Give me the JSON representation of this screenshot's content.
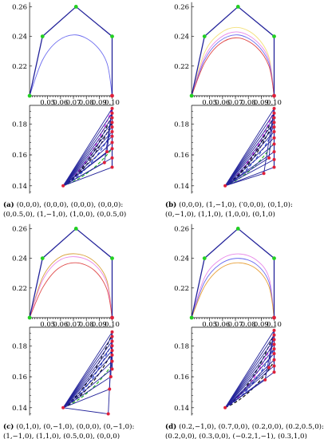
{
  "chart_data": [
    {
      "type": "line",
      "panel": "a",
      "caption": {
        "label": "(a)",
        "line1": "(0,0,0), (0,0,0), (0,0,0), (0,0,0):",
        "line2": "(0,0.5,0), (1,−1,0), (1,0,0), (0,0.5,0)"
      },
      "top": {
        "xlim": [
          0.036,
          0.1
        ],
        "ylim": [
          0.2,
          0.262
        ],
        "xticks": [
          "0.05",
          "0.06",
          "0.07",
          "0.08",
          "0.09",
          "0.10"
        ],
        "yticks": [
          "0.26",
          "0.24",
          "0.22"
        ],
        "control_polygon": [
          [
            0.036,
            0.2
          ],
          [
            0.046,
            0.24
          ],
          [
            0.072,
            0.26
          ],
          [
            0.1,
            0.24
          ],
          [
            0.1,
            0.2
          ]
        ],
        "curves": [
          {
            "color": "#6b6bef",
            "points": [
              [
                0.036,
                0.2
              ],
              [
                0.046,
                0.224
              ],
              [
                0.058,
                0.237
              ],
              [
                0.072,
                0.241
              ],
              [
                0.086,
                0.235
              ],
              [
                0.096,
                0.222
              ],
              [
                0.1,
                0.2
              ]
            ]
          }
        ]
      },
      "bottom": {
        "ylim": [
          0.135,
          0.192
        ],
        "yticks": [
          "0.18",
          "0.16",
          "0.14"
        ],
        "fan_points": [
          [
            0.062,
            0.14
          ],
          [
            0.1,
            0.152
          ],
          [
            0.1,
            0.158
          ],
          [
            0.1,
            0.164
          ],
          [
            0.1,
            0.168
          ],
          [
            0.1,
            0.172
          ],
          [
            0.1,
            0.175
          ],
          [
            0.1,
            0.178
          ],
          [
            0.1,
            0.181
          ],
          [
            0.1,
            0.184
          ],
          [
            0.1,
            0.187
          ],
          [
            0.1,
            0.19
          ]
        ],
        "extra_points": [
          [
            0.094,
            0.155
          ],
          [
            0.096,
            0.162
          ]
        ],
        "dashed": [
          {
            "color": "#e01fe0",
            "end": [
              0.1,
              0.19
            ]
          },
          {
            "color": "#000000",
            "end": [
              0.1,
              0.181
            ]
          },
          {
            "color": "#1f3fd6",
            "end": [
              0.1,
              0.175
            ]
          },
          {
            "color": "#1aaf1a",
            "end": [
              0.1,
              0.164
            ]
          },
          {
            "color": "#000000",
            "end": [
              0.1,
              0.186
            ]
          }
        ]
      }
    },
    {
      "type": "line",
      "panel": "b",
      "caption": {
        "label": "(b)",
        "line1": "(0,0,0), (1,−1,0), (′0,0,0), (0,1,0):",
        "line2": "(0,−1,0), (1,1,0), (1,0,0), (0,1,0)"
      },
      "top": {
        "xlim": [
          0.036,
          0.1
        ],
        "ylim": [
          0.2,
          0.262
        ],
        "xticks": [
          "0.05",
          "0.06",
          "0.07",
          "0.08",
          "0.09",
          "0.10"
        ],
        "yticks": [
          "0.26",
          "0.24",
          "0.22"
        ],
        "control_polygon": [
          [
            0.036,
            0.2
          ],
          [
            0.046,
            0.24
          ],
          [
            0.072,
            0.26
          ],
          [
            0.1,
            0.24
          ],
          [
            0.1,
            0.2
          ]
        ],
        "curves": [
          {
            "color": "#f4e07a",
            "points": [
              [
                0.036,
                0.2
              ],
              [
                0.046,
                0.229
              ],
              [
                0.058,
                0.242
              ],
              [
                0.072,
                0.246
              ],
              [
                0.086,
                0.24
              ],
              [
                0.096,
                0.226
              ],
              [
                0.1,
                0.2
              ]
            ]
          },
          {
            "color": "#e989e9",
            "points": [
              [
                0.036,
                0.2
              ],
              [
                0.046,
                0.226
              ],
              [
                0.058,
                0.239
              ],
              [
                0.072,
                0.243
              ],
              [
                0.086,
                0.237
              ],
              [
                0.096,
                0.224
              ],
              [
                0.1,
                0.2
              ]
            ]
          },
          {
            "color": "#6b6bef",
            "points": [
              [
                0.036,
                0.2
              ],
              [
                0.046,
                0.224
              ],
              [
                0.058,
                0.237
              ],
              [
                0.072,
                0.241
              ],
              [
                0.086,
                0.235
              ],
              [
                0.096,
                0.222
              ],
              [
                0.1,
                0.2
              ]
            ]
          },
          {
            "color": "#e04a4a",
            "points": [
              [
                0.036,
                0.2
              ],
              [
                0.046,
                0.222
              ],
              [
                0.058,
                0.235
              ],
              [
                0.072,
                0.239
              ],
              [
                0.086,
                0.233
              ],
              [
                0.096,
                0.22
              ],
              [
                0.1,
                0.2
              ]
            ]
          }
        ]
      },
      "bottom": {
        "ylim": [
          0.135,
          0.192
        ],
        "yticks": [
          "0.18",
          "0.16",
          "0.14"
        ],
        "fan_points": [
          [
            0.062,
            0.14
          ],
          [
            0.1,
            0.152
          ],
          [
            0.1,
            0.157
          ],
          [
            0.1,
            0.162
          ],
          [
            0.1,
            0.167
          ],
          [
            0.1,
            0.171
          ],
          [
            0.1,
            0.175
          ],
          [
            0.1,
            0.178
          ],
          [
            0.1,
            0.181
          ],
          [
            0.1,
            0.184
          ],
          [
            0.1,
            0.187
          ],
          [
            0.1,
            0.19
          ]
        ],
        "extra_points": [
          [
            0.092,
            0.148
          ],
          [
            0.096,
            0.158
          ]
        ],
        "dashed": [
          {
            "color": "#e01fe0",
            "end": [
              0.1,
              0.189
            ]
          },
          {
            "color": "#000000",
            "end": [
              0.1,
              0.182
            ]
          },
          {
            "color": "#1f3fd6",
            "end": [
              0.1,
              0.176
            ]
          },
          {
            "color": "#1aaf1a",
            "end": [
              0.1,
              0.168
            ]
          },
          {
            "color": "#000000",
            "end": [
              0.1,
              0.186
            ]
          }
        ]
      }
    },
    {
      "type": "line",
      "panel": "c",
      "caption": {
        "label": "(c)",
        "line1": "(0,1,0), (0,−1,0), (0,0,0), (0,−1,0):",
        "line2": "(1,−1,0), (1,1,0), (0.5,0,0), (0,0,0)"
      },
      "top": {
        "xlim": [
          0.036,
          0.1
        ],
        "ylim": [
          0.2,
          0.262
        ],
        "xticks": [
          "0.05",
          "0.06",
          "0.07",
          "0.08",
          "0.09",
          "0.10"
        ],
        "yticks": [
          "0.26",
          "0.24",
          "0.22"
        ],
        "control_polygon": [
          [
            0.036,
            0.2
          ],
          [
            0.046,
            0.24
          ],
          [
            0.072,
            0.26
          ],
          [
            0.1,
            0.24
          ],
          [
            0.1,
            0.2
          ]
        ],
        "curves": [
          {
            "color": "#d9a23a",
            "points": [
              [
                0.036,
                0.2
              ],
              [
                0.046,
                0.227
              ],
              [
                0.058,
                0.24
              ],
              [
                0.072,
                0.243
              ],
              [
                0.086,
                0.238
              ],
              [
                0.096,
                0.225
              ],
              [
                0.1,
                0.2
              ]
            ]
          },
          {
            "color": "#e989e9",
            "points": [
              [
                0.036,
                0.2
              ],
              [
                0.046,
                0.225
              ],
              [
                0.058,
                0.238
              ],
              [
                0.072,
                0.241
              ],
              [
                0.086,
                0.236
              ],
              [
                0.096,
                0.223
              ],
              [
                0.1,
                0.2
              ]
            ]
          },
          {
            "color": "#e04a4a",
            "points": [
              [
                0.036,
                0.2
              ],
              [
                0.046,
                0.22
              ],
              [
                0.058,
                0.233
              ],
              [
                0.072,
                0.237
              ],
              [
                0.086,
                0.232
              ],
              [
                0.096,
                0.219
              ],
              [
                0.1,
                0.2
              ]
            ]
          }
        ]
      },
      "bottom": {
        "ylim": [
          0.135,
          0.192
        ],
        "yticks": [
          "0.18",
          "0.16",
          "0.14"
        ],
        "fan_points": [
          [
            0.062,
            0.14
          ],
          [
            0.1,
            0.165
          ],
          [
            0.1,
            0.17
          ],
          [
            0.1,
            0.174
          ],
          [
            0.1,
            0.177
          ],
          [
            0.1,
            0.18
          ],
          [
            0.1,
            0.183
          ],
          [
            0.1,
            0.186
          ],
          [
            0.1,
            0.189
          ]
        ],
        "extra_points": [
          [
            0.097,
            0.136
          ],
          [
            0.098,
            0.152
          ],
          [
            0.099,
            0.16
          ]
        ],
        "dashed": [
          {
            "color": "#1aaf1a",
            "end": [
              0.1,
              0.168
            ]
          },
          {
            "color": "#000000",
            "end": [
              0.1,
              0.176
            ]
          },
          {
            "color": "#1f3fd6",
            "end": [
              0.1,
              0.182
            ]
          },
          {
            "color": "#000000",
            "end": [
              0.1,
              0.188
            ]
          }
        ]
      }
    },
    {
      "type": "line",
      "panel": "d",
      "caption": {
        "label": "(d)",
        "line1": "(0.2,−1,0), (0.7,0,0), (0.2,0,0), (0.2,0.5,0):",
        "line2": "(0.2,0,0), (0.3,0,0), (−0.2,1,−1), (0.3,1,0)"
      },
      "top": {
        "xlim": [
          0.036,
          0.1
        ],
        "ylim": [
          0.2,
          0.262
        ],
        "xticks": [
          "0.05",
          "0.06",
          "0.07",
          "0.08",
          "0.09",
          "0.10"
        ],
        "yticks": [
          "0.26",
          "0.24",
          "0.22"
        ],
        "control_polygon": [
          [
            0.036,
            0.2
          ],
          [
            0.046,
            0.24
          ],
          [
            0.072,
            0.26
          ],
          [
            0.1,
            0.24
          ],
          [
            0.1,
            0.2
          ]
        ],
        "curves": [
          {
            "color": "#e989e9",
            "points": [
              [
                0.036,
                0.2
              ],
              [
                0.046,
                0.227
              ],
              [
                0.058,
                0.239
              ],
              [
                0.072,
                0.243
              ],
              [
                0.086,
                0.239
              ],
              [
                0.096,
                0.227
              ],
              [
                0.1,
                0.2
              ]
            ]
          },
          {
            "color": "#6b6bef",
            "points": [
              [
                0.036,
                0.2
              ],
              [
                0.046,
                0.224
              ],
              [
                0.058,
                0.236
              ],
              [
                0.072,
                0.24
              ],
              [
                0.086,
                0.236
              ],
              [
                0.096,
                0.224
              ],
              [
                0.1,
                0.2
              ]
            ]
          },
          {
            "color": "#e8a13a",
            "points": [
              [
                0.036,
                0.2
              ],
              [
                0.046,
                0.221
              ],
              [
                0.058,
                0.233
              ],
              [
                0.072,
                0.237
              ],
              [
                0.086,
                0.233
              ],
              [
                0.096,
                0.221
              ],
              [
                0.1,
                0.2
              ]
            ]
          }
        ]
      },
      "bottom": {
        "ylim": [
          0.135,
          0.192
        ],
        "yticks": [
          "0.18",
          "0.16",
          "0.14"
        ],
        "fan_points": [
          [
            0.062,
            0.14
          ],
          [
            0.1,
            0.163
          ],
          [
            0.1,
            0.167
          ],
          [
            0.1,
            0.171
          ],
          [
            0.1,
            0.175
          ],
          [
            0.1,
            0.178
          ],
          [
            0.1,
            0.181
          ],
          [
            0.1,
            0.184
          ],
          [
            0.1,
            0.187
          ],
          [
            0.1,
            0.19
          ]
        ],
        "extra_points": [
          [
            0.093,
            0.158
          ],
          [
            0.096,
            0.166
          ]
        ],
        "dashed": [
          {
            "color": "#000000",
            "end": [
              0.1,
              0.17
            ]
          },
          {
            "color": "#1f3fd6",
            "end": [
              0.1,
              0.178
            ]
          },
          {
            "color": "#e01fe0",
            "end": [
              0.1,
              0.184
            ]
          },
          {
            "color": "#000000",
            "end": [
              0.1,
              0.188
            ]
          }
        ]
      }
    }
  ]
}
